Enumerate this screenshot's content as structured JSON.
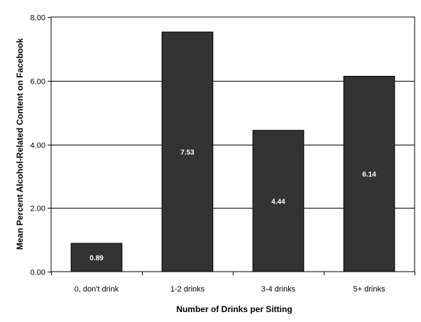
{
  "chart_data": {
    "type": "bar",
    "title": "",
    "xlabel": "Number of Drinks per Sitting",
    "ylabel": "Mean Percent Alcohol-Related Content on Facebook",
    "categories": [
      "0, don't drink",
      "1-2 drinks",
      "3-4 drinks",
      "5+ drinks"
    ],
    "values": [
      0.89,
      7.53,
      4.44,
      6.14
    ],
    "data_labels": [
      "0.89",
      "7.53",
      "4.44",
      "6.14"
    ],
    "ylim": [
      0,
      8
    ],
    "yticks": [
      0,
      2,
      4,
      6,
      8
    ],
    "ytick_labels": [
      "0.00",
      "2.00",
      "4.00",
      "6.00",
      "8.00"
    ],
    "grid": true,
    "legend": "none",
    "bar_color": "#333333",
    "bar_edge_color": "#000000"
  }
}
